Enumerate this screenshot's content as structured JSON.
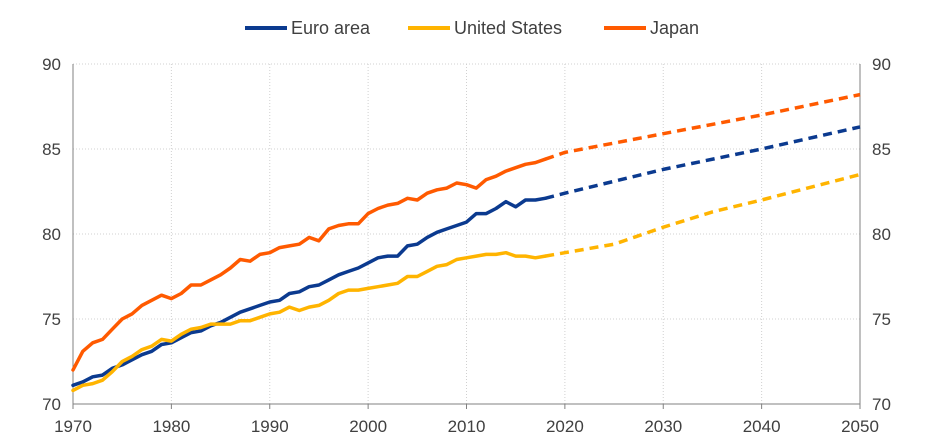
{
  "colors": {
    "euro": "#0b3a8f",
    "us": "#ffb400",
    "japan": "#ff5a00",
    "grid": "#d0d0d0",
    "axis": "#808080",
    "text": "#404040"
  },
  "chart_data": {
    "type": "line",
    "title": "",
    "xlabel": "",
    "ylabel": "",
    "xlim": [
      1970,
      2050
    ],
    "ylim": [
      70,
      90
    ],
    "x_ticks": [
      1970,
      1980,
      1990,
      2000,
      2010,
      2020,
      2030,
      2040,
      2050
    ],
    "y_ticks": [
      70,
      75,
      80,
      85,
      90
    ],
    "secondary_y_axis": true,
    "grid": {
      "vertical": true,
      "horizontal": true,
      "style": "dotted"
    },
    "legend": {
      "position": "top-center"
    },
    "projection_start": 2018,
    "projection_style": "dashed",
    "series": [
      {
        "name": "Euro area",
        "color_key": "euro",
        "historical": [
          [
            1970,
            71.1
          ],
          [
            1971,
            71.3
          ],
          [
            1972,
            71.6
          ],
          [
            1973,
            71.7
          ],
          [
            1974,
            72.1
          ],
          [
            1975,
            72.3
          ],
          [
            1976,
            72.6
          ],
          [
            1977,
            72.9
          ],
          [
            1978,
            73.1
          ],
          [
            1979,
            73.5
          ],
          [
            1980,
            73.6
          ],
          [
            1981,
            73.9
          ],
          [
            1982,
            74.2
          ],
          [
            1983,
            74.3
          ],
          [
            1984,
            74.6
          ],
          [
            1985,
            74.8
          ],
          [
            1986,
            75.1
          ],
          [
            1987,
            75.4
          ],
          [
            1988,
            75.6
          ],
          [
            1989,
            75.8
          ],
          [
            1990,
            76.0
          ],
          [
            1991,
            76.1
          ],
          [
            1992,
            76.5
          ],
          [
            1993,
            76.6
          ],
          [
            1994,
            76.9
          ],
          [
            1995,
            77.0
          ],
          [
            1996,
            77.3
          ],
          [
            1997,
            77.6
          ],
          [
            1998,
            77.8
          ],
          [
            1999,
            78.0
          ],
          [
            2000,
            78.3
          ],
          [
            2001,
            78.6
          ],
          [
            2002,
            78.7
          ],
          [
            2003,
            78.7
          ],
          [
            2004,
            79.3
          ],
          [
            2005,
            79.4
          ],
          [
            2006,
            79.8
          ],
          [
            2007,
            80.1
          ],
          [
            2008,
            80.3
          ],
          [
            2009,
            80.5
          ],
          [
            2010,
            80.7
          ],
          [
            2011,
            81.2
          ],
          [
            2012,
            81.2
          ],
          [
            2013,
            81.5
          ],
          [
            2014,
            81.9
          ],
          [
            2015,
            81.6
          ],
          [
            2016,
            82.0
          ],
          [
            2017,
            82.0
          ],
          [
            2018,
            82.1
          ]
        ],
        "projection": [
          [
            2018,
            82.1
          ],
          [
            2020,
            82.4
          ],
          [
            2030,
            83.8
          ],
          [
            2040,
            85.0
          ],
          [
            2050,
            86.3
          ]
        ]
      },
      {
        "name": "United States",
        "color_key": "us",
        "historical": [
          [
            1970,
            70.8
          ],
          [
            1971,
            71.1
          ],
          [
            1972,
            71.2
          ],
          [
            1973,
            71.4
          ],
          [
            1974,
            71.9
          ],
          [
            1975,
            72.5
          ],
          [
            1976,
            72.8
          ],
          [
            1977,
            73.2
          ],
          [
            1978,
            73.4
          ],
          [
            1979,
            73.8
          ],
          [
            1980,
            73.7
          ],
          [
            1981,
            74.1
          ],
          [
            1982,
            74.4
          ],
          [
            1983,
            74.5
          ],
          [
            1984,
            74.7
          ],
          [
            1985,
            74.7
          ],
          [
            1986,
            74.7
          ],
          [
            1987,
            74.9
          ],
          [
            1988,
            74.9
          ],
          [
            1989,
            75.1
          ],
          [
            1990,
            75.3
          ],
          [
            1991,
            75.4
          ],
          [
            1992,
            75.7
          ],
          [
            1993,
            75.5
          ],
          [
            1994,
            75.7
          ],
          [
            1995,
            75.8
          ],
          [
            1996,
            76.1
          ],
          [
            1997,
            76.5
          ],
          [
            1998,
            76.7
          ],
          [
            1999,
            76.7
          ],
          [
            2000,
            76.8
          ],
          [
            2001,
            76.9
          ],
          [
            2002,
            77.0
          ],
          [
            2003,
            77.1
          ],
          [
            2004,
            77.5
          ],
          [
            2005,
            77.5
          ],
          [
            2006,
            77.8
          ],
          [
            2007,
            78.1
          ],
          [
            2008,
            78.2
          ],
          [
            2009,
            78.5
          ],
          [
            2010,
            78.6
          ],
          [
            2011,
            78.7
          ],
          [
            2012,
            78.8
          ],
          [
            2013,
            78.8
          ],
          [
            2014,
            78.9
          ],
          [
            2015,
            78.7
          ],
          [
            2016,
            78.7
          ],
          [
            2017,
            78.6
          ],
          [
            2018,
            78.7
          ]
        ],
        "projection": [
          [
            2018,
            78.7
          ],
          [
            2020,
            78.9
          ],
          [
            2025,
            79.4
          ],
          [
            2030,
            80.4
          ],
          [
            2035,
            81.3
          ],
          [
            2040,
            82.0
          ],
          [
            2050,
            83.5
          ]
        ]
      },
      {
        "name": "Japan",
        "color_key": "japan",
        "historical": [
          [
            1970,
            72.0
          ],
          [
            1971,
            73.1
          ],
          [
            1972,
            73.6
          ],
          [
            1973,
            73.8
          ],
          [
            1974,
            74.4
          ],
          [
            1975,
            75.0
          ],
          [
            1976,
            75.3
          ],
          [
            1977,
            75.8
          ],
          [
            1978,
            76.1
          ],
          [
            1979,
            76.4
          ],
          [
            1980,
            76.2
          ],
          [
            1981,
            76.5
          ],
          [
            1982,
            77.0
          ],
          [
            1983,
            77.0
          ],
          [
            1984,
            77.3
          ],
          [
            1985,
            77.6
          ],
          [
            1986,
            78.0
          ],
          [
            1987,
            78.5
          ],
          [
            1988,
            78.4
          ],
          [
            1989,
            78.8
          ],
          [
            1990,
            78.9
          ],
          [
            1991,
            79.2
          ],
          [
            1992,
            79.3
          ],
          [
            1993,
            79.4
          ],
          [
            1994,
            79.8
          ],
          [
            1995,
            79.6
          ],
          [
            1996,
            80.3
          ],
          [
            1997,
            80.5
          ],
          [
            1998,
            80.6
          ],
          [
            1999,
            80.6
          ],
          [
            2000,
            81.2
          ],
          [
            2001,
            81.5
          ],
          [
            2002,
            81.7
          ],
          [
            2003,
            81.8
          ],
          [
            2004,
            82.1
          ],
          [
            2005,
            82.0
          ],
          [
            2006,
            82.4
          ],
          [
            2007,
            82.6
          ],
          [
            2008,
            82.7
          ],
          [
            2009,
            83.0
          ],
          [
            2010,
            82.9
          ],
          [
            2011,
            82.7
          ],
          [
            2012,
            83.2
          ],
          [
            2013,
            83.4
          ],
          [
            2014,
            83.7
          ],
          [
            2015,
            83.9
          ],
          [
            2016,
            84.1
          ],
          [
            2017,
            84.2
          ],
          [
            2018,
            84.4
          ]
        ],
        "projection": [
          [
            2018,
            84.4
          ],
          [
            2020,
            84.8
          ],
          [
            2030,
            85.9
          ],
          [
            2040,
            87.0
          ],
          [
            2050,
            88.2
          ]
        ]
      }
    ]
  }
}
